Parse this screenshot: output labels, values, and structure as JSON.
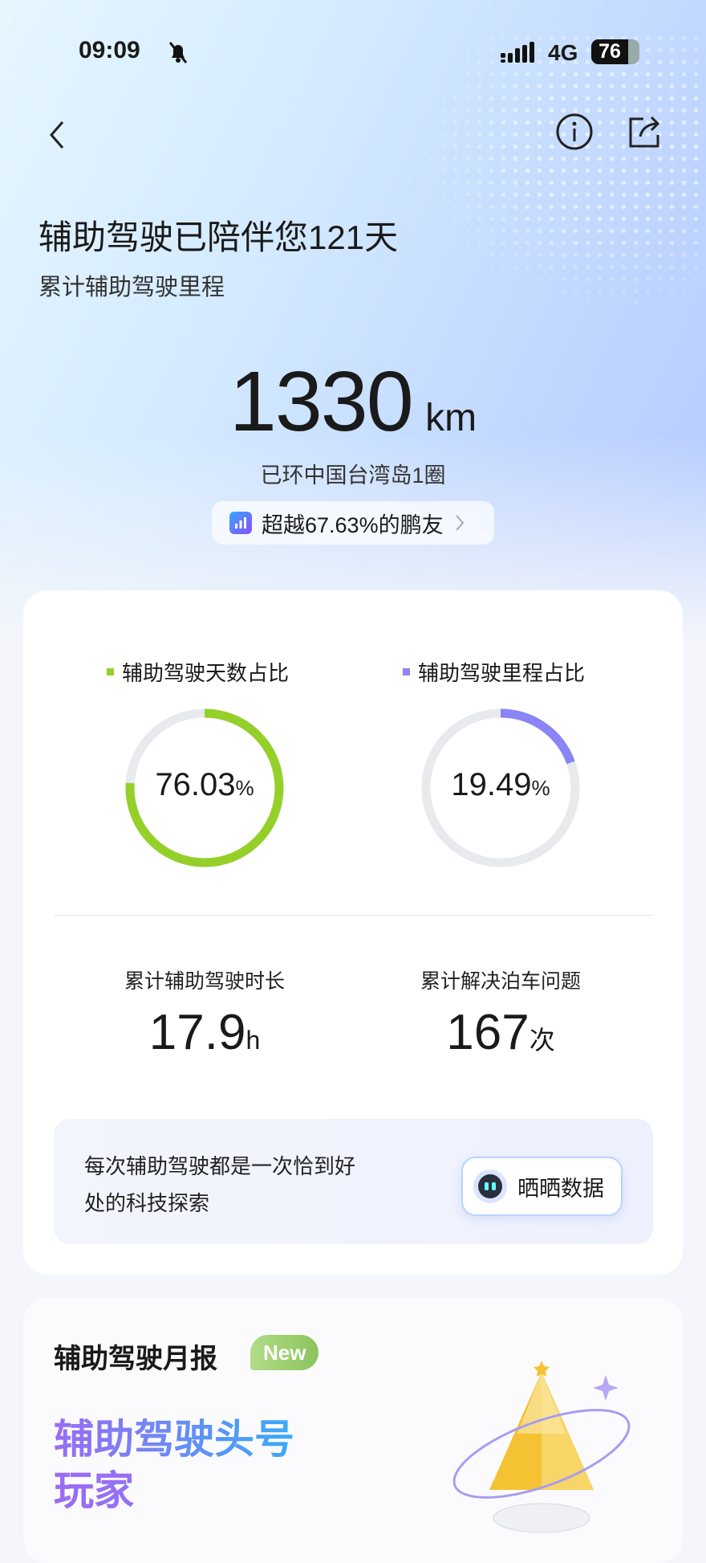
{
  "status_bar": {
    "time": "09:09",
    "mute_icon": "bell-slash-icon",
    "network": "4G",
    "battery": "76"
  },
  "nav": {
    "back_icon": "chevron-left-icon",
    "info_icon": "info-circle-icon",
    "share_icon": "share-icon"
  },
  "header": {
    "title": "辅助驾驶已陪伴您121天",
    "subtitle": "累计辅助驾驶里程"
  },
  "mileage": {
    "value": "1330",
    "unit": "km",
    "caption": "已环中国台湾岛1圈",
    "rank_label": "超越67.63%的鹏友"
  },
  "chart_data": [
    {
      "type": "pie",
      "title": "辅助驾驶天数占比",
      "values": [
        76.03
      ],
      "value_label": "76.03",
      "unit": "%",
      "color": "#95d02a",
      "track_color": "#e8eaee"
    },
    {
      "type": "pie",
      "title": "辅助驾驶里程占比",
      "values": [
        19.49
      ],
      "value_label": "19.49",
      "unit": "%",
      "color": "#8a85f5",
      "track_color": "#e8eaee"
    }
  ],
  "stats": [
    {
      "label": "累计辅助驾驶时长",
      "value": "17.9",
      "unit": "h"
    },
    {
      "label": "累计解决泊车问题",
      "value": "167",
      "unit": "次"
    }
  ],
  "banner": {
    "text_line1": "每次辅助驾驶都是一次恰到好",
    "text_line2": "处的科技探索",
    "button_label": "晒晒数据"
  },
  "monthly": {
    "title": "辅助驾驶月报",
    "badge": "New",
    "headline_line1": "辅助驾驶头号",
    "headline_line2": "玩家"
  }
}
